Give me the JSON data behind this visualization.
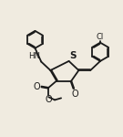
{
  "bg_color": "#f0ebe0",
  "line_color": "#1a1a1a",
  "line_width": 1.3,
  "figsize": [
    1.35,
    1.5
  ],
  "dpi": 100,
  "xlim": [
    0,
    10
  ],
  "ylim": [
    0,
    10
  ]
}
